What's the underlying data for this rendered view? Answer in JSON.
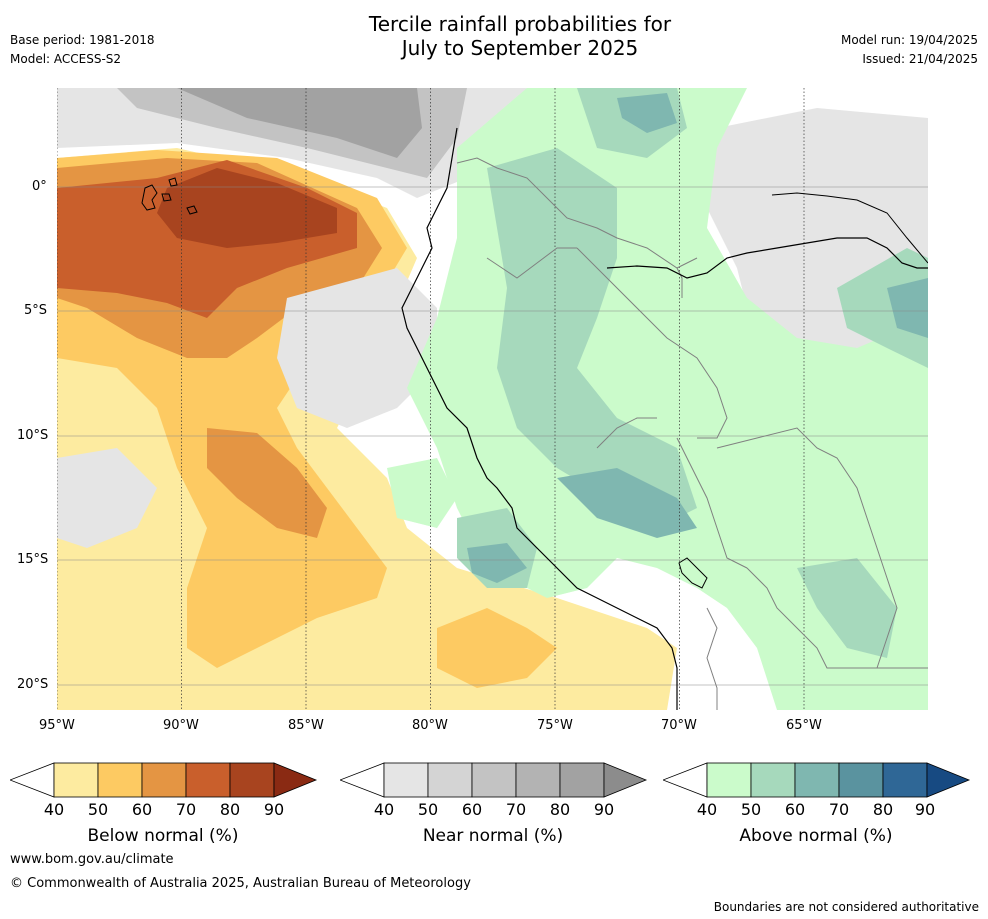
{
  "header": {
    "title_line1": "Tercile rainfall probabilities for",
    "title_line2": "July to September 2025",
    "base_period": "Base period: 1981-2018",
    "model": "Model: ACCESS-S2",
    "model_run": "Model run: 19/04/2025",
    "issued": "Issued: 21/04/2025"
  },
  "map": {
    "lon_labels": [
      "95°W",
      "90°W",
      "85°W",
      "80°W",
      "75°W",
      "70°W",
      "65°W"
    ],
    "lat_labels": [
      "0°",
      "5°S",
      "10°S",
      "15°S",
      "20°S"
    ]
  },
  "colorbars": [
    {
      "title": "Below normal (%)",
      "ticks": [
        "40",
        "50",
        "60",
        "70",
        "80",
        "90"
      ],
      "colors": [
        "#fdeba0",
        "#fdca62",
        "#e49543",
        "#c95f2c",
        "#a8441f",
        "#8a2a13"
      ]
    },
    {
      "title": "Near normal (%)",
      "ticks": [
        "40",
        "50",
        "60",
        "70",
        "80",
        "90"
      ],
      "colors": [
        "#e5e5e5",
        "#d4d4d4",
        "#c3c3c3",
        "#b3b3b3",
        "#a2a2a2",
        "#8c8c8c"
      ]
    },
    {
      "title": "Above normal (%)",
      "ticks": [
        "40",
        "50",
        "60",
        "70",
        "80",
        "90"
      ],
      "colors": [
        "#cbfbcb",
        "#a6d9bc",
        "#7fb7b0",
        "#5a939f",
        "#2f6796",
        "#174a82"
      ]
    }
  ],
  "footer": {
    "url": "www.bom.gov.au/climate",
    "copyright": "© Commonwealth of Australia 2025, Australian Bureau of Meteorology",
    "disclaimer": "Boundaries are not considered authoritative"
  }
}
